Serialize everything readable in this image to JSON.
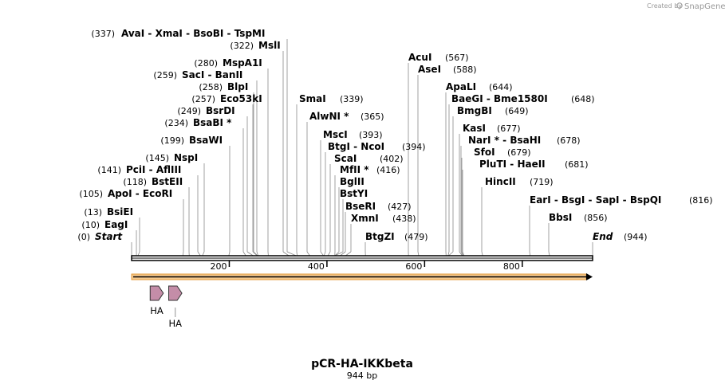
{
  "credit": {
    "prefix": "Created by",
    "brand": "SnapGene"
  },
  "map": {
    "length": 944,
    "title": "pCR-HA-IKKbeta",
    "subtitle": "944 bp",
    "ticks": [
      200,
      400,
      600,
      800
    ],
    "features": [
      {
        "label": "HA",
        "start": 38,
        "end": 65
      },
      {
        "label": "HA",
        "start": 76,
        "end": 103
      }
    ],
    "sites": [
      {
        "text": "AvaI  - XmaI  - BsoBI  - TspMI",
        "pos": "(337)",
        "bp": 337
      },
      {
        "text": "MslI",
        "pos": "(322)",
        "bp": 322
      },
      {
        "text": "MspA1I",
        "pos": "(280)",
        "bp": 280
      },
      {
        "text": "SacI  - BanII",
        "pos": "(259)",
        "bp": 259
      },
      {
        "text": "BlpI",
        "pos": "(258)",
        "bp": 258
      },
      {
        "text": "Eco53kI",
        "pos": "(257)",
        "bp": 257
      },
      {
        "text": "BsrDI",
        "pos": "(249)",
        "bp": 249
      },
      {
        "text": "BsaBI *",
        "pos": "(234)",
        "bp": 234
      },
      {
        "text": "BsaWI",
        "pos": "(199)",
        "bp": 199
      },
      {
        "text": "NspI",
        "pos": "(145)",
        "bp": 145
      },
      {
        "text": "PciI  - AflIII",
        "pos": "(141)",
        "bp": 141
      },
      {
        "text": "BstEII",
        "pos": "(118)",
        "bp": 118
      },
      {
        "text": "ApoI  - EcoRI",
        "pos": "(105)",
        "bp": 105
      },
      {
        "text": "BsiEI",
        "pos": "(13)",
        "bp": 13
      },
      {
        "text": "EagI",
        "pos": "(10)",
        "bp": 10
      },
      {
        "text": "Start",
        "pos": "(0)",
        "bp": 0
      },
      {
        "text": "SmaI",
        "pos": "(339)",
        "bp": 339
      },
      {
        "text": "AlwNI *",
        "pos": "(365)",
        "bp": 365
      },
      {
        "text": "MscI",
        "pos": "(393)",
        "bp": 393
      },
      {
        "text": "BtgI  - NcoI",
        "pos": "(394)",
        "bp": 394
      },
      {
        "text": "ScaI",
        "pos": "(402)",
        "bp": 402
      },
      {
        "text": "MfII *",
        "pos": "(416)",
        "bp": 416
      },
      {
        "text": "BglII",
        "pos": "",
        "bp": 416
      },
      {
        "text": "BstYI",
        "pos": "",
        "bp": 416
      },
      {
        "text": "BseRI",
        "pos": "(427)",
        "bp": 427
      },
      {
        "text": "XmnI",
        "pos": "(438)",
        "bp": 438
      },
      {
        "text": "BtgZI",
        "pos": "(479)",
        "bp": 479
      },
      {
        "text": "AcuI",
        "pos": "(567)",
        "bp": 567
      },
      {
        "text": "AseI",
        "pos": "(588)",
        "bp": 588
      },
      {
        "text": "ApaLI",
        "pos": "(644)",
        "bp": 644
      },
      {
        "text": "BaeGI  - Bme1580I",
        "pos": "(648)",
        "bp": 648
      },
      {
        "text": "BmgBI",
        "pos": "(649)",
        "bp": 649
      },
      {
        "text": "KasI",
        "pos": "(677)",
        "bp": 677
      },
      {
        "text": "NarI *  - BsaHI",
        "pos": "(678)",
        "bp": 678
      },
      {
        "text": "SfoI",
        "pos": "(679)",
        "bp": 679
      },
      {
        "text": "PluTI  - HaeII",
        "pos": "(681)",
        "bp": 681
      },
      {
        "text": "HincII",
        "pos": "(719)",
        "bp": 719
      },
      {
        "text": "EarI  - BsgI  - SapI  - BspQI",
        "pos": "(816)",
        "bp": 816
      },
      {
        "text": "BbsI",
        "pos": "(856)",
        "bp": 856
      },
      {
        "text": "End",
        "pos": "(944)",
        "bp": 944
      }
    ]
  }
}
